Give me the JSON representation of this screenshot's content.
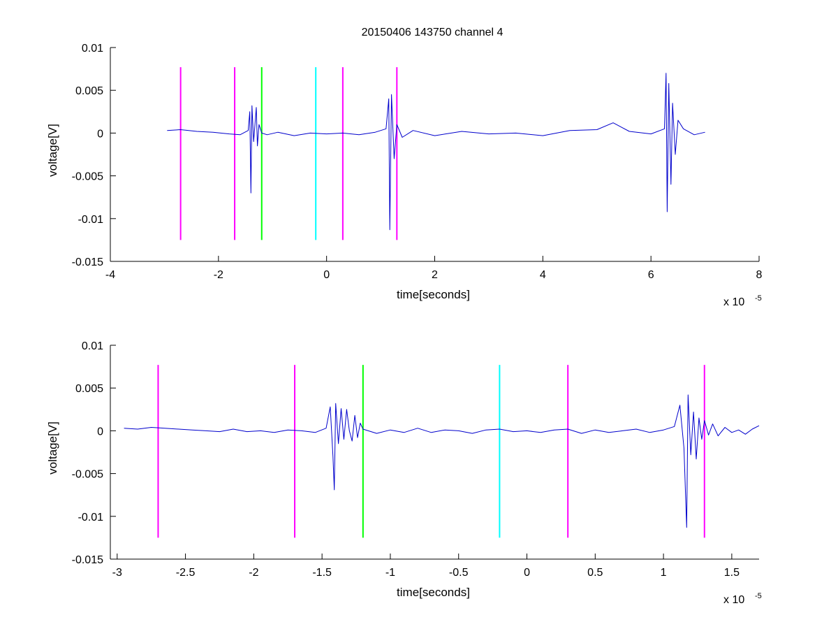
{
  "figure": {
    "title": "20150406 143750 channel 4"
  },
  "chart_data": [
    {
      "type": "line",
      "xlabel": "time[seconds]",
      "ylabel": "voltage[V]",
      "x_multiplier": "x 10",
      "x_exponent": "-5",
      "xlim": [
        -4,
        8
      ],
      "ylim": [
        -0.015,
        0.01
      ],
      "xticks": [
        -4,
        -2,
        0,
        2,
        4,
        6,
        8
      ],
      "xtick_labels": [
        "-4",
        "-2",
        "0",
        "2",
        "4",
        "6",
        "8"
      ],
      "yticks": [
        -0.015,
        -0.01,
        -0.005,
        0,
        0.005,
        0.01
      ],
      "ytick_labels": [
        "-0.015",
        "-0.01",
        "-0.005",
        "0",
        "0.005",
        "0.01"
      ],
      "grid": false,
      "series": [
        {
          "color": "#0000cc",
          "x": [
            -2.95,
            -2.7,
            -2.4,
            -2.1,
            -1.8,
            -1.6,
            -1.45,
            -1.42,
            -1.4,
            -1.38,
            -1.35,
            -1.3,
            -1.28,
            -1.25,
            -1.2,
            -1.1,
            -0.9,
            -0.6,
            -0.3,
            0.0,
            0.3,
            0.6,
            0.9,
            1.1,
            1.15,
            1.17,
            1.2,
            1.25,
            1.3,
            1.4,
            1.6,
            2.0,
            2.5,
            3.0,
            3.5,
            4.0,
            4.5,
            5.0,
            5.3,
            5.6,
            6.0,
            6.25,
            6.28,
            6.3,
            6.33,
            6.37,
            6.4,
            6.45,
            6.5,
            6.6,
            6.8,
            7.0
          ],
          "y": [
            0.0003,
            0.0004,
            0.0002,
            0.0001,
            -0.0001,
            -0.0002,
            0.0003,
            0.0025,
            -0.007,
            0.0032,
            -0.001,
            0.003,
            -0.0015,
            0.001,
            0.0,
            -0.0002,
            0.0001,
            -0.0003,
            0.0,
            -0.0001,
            0.0,
            -0.0002,
            0.0001,
            0.0005,
            0.004,
            -0.0113,
            0.0045,
            -0.003,
            0.001,
            -0.0005,
            0.0003,
            -0.0003,
            0.0002,
            -0.0001,
            0.0,
            -0.0003,
            0.0003,
            0.0004,
            0.0012,
            0.0002,
            -0.0001,
            0.0005,
            0.007,
            -0.0092,
            0.0058,
            -0.006,
            0.0035,
            -0.0025,
            0.0015,
            0.0005,
            -0.0002,
            0.0001
          ]
        }
      ],
      "markers": [
        {
          "x": -2.7,
          "color": "#ff00ff"
        },
        {
          "x": -1.7,
          "color": "#ff00ff"
        },
        {
          "x": -1.2,
          "color": "#00ff00"
        },
        {
          "x": -0.2,
          "color": "#00ffff"
        },
        {
          "x": 0.3,
          "color": "#ff00ff"
        },
        {
          "x": 1.3,
          "color": "#ff00ff"
        }
      ],
      "marker_range": [
        -0.0125,
        0.0077
      ]
    },
    {
      "type": "line",
      "xlabel": "time[seconds]",
      "ylabel": "voltage[V]",
      "x_multiplier": "x 10",
      "x_exponent": "-5",
      "xlim": [
        -3.05,
        1.7
      ],
      "ylim": [
        -0.015,
        0.01
      ],
      "xticks": [
        -3,
        -2.5,
        -2,
        -1.5,
        -1,
        -0.5,
        0,
        0.5,
        1,
        1.5
      ],
      "xtick_labels": [
        "-3",
        "-2.5",
        "-2",
        "-1.5",
        "-1",
        "-0.5",
        "0",
        "0.5",
        "1",
        "1.5"
      ],
      "yticks": [
        -0.015,
        -0.01,
        -0.005,
        0,
        0.005,
        0.01
      ],
      "ytick_labels": [
        "-0.015",
        "-0.01",
        "-0.005",
        "0",
        "0.005",
        "0.01"
      ],
      "grid": false,
      "series": [
        {
          "color": "#0000cc",
          "x": [
            -2.95,
            -2.85,
            -2.75,
            -2.65,
            -2.55,
            -2.45,
            -2.35,
            -2.25,
            -2.15,
            -2.05,
            -1.95,
            -1.85,
            -1.75,
            -1.65,
            -1.55,
            -1.47,
            -1.44,
            -1.42,
            -1.41,
            -1.4,
            -1.38,
            -1.36,
            -1.34,
            -1.32,
            -1.3,
            -1.28,
            -1.26,
            -1.24,
            -1.22,
            -1.2,
            -1.1,
            -1.0,
            -0.9,
            -0.8,
            -0.7,
            -0.6,
            -0.5,
            -0.4,
            -0.3,
            -0.2,
            -0.1,
            0.0,
            0.1,
            0.2,
            0.3,
            0.4,
            0.5,
            0.6,
            0.7,
            0.8,
            0.9,
            1.0,
            1.08,
            1.12,
            1.15,
            1.17,
            1.18,
            1.2,
            1.22,
            1.24,
            1.26,
            1.28,
            1.3,
            1.33,
            1.36,
            1.4,
            1.45,
            1.5,
            1.55,
            1.6,
            1.65,
            1.7
          ],
          "y": [
            0.0003,
            0.0002,
            0.0004,
            0.0003,
            0.0002,
            0.0001,
            0.0,
            -0.0001,
            0.0002,
            -0.0001,
            0.0,
            -0.0002,
            0.0001,
            0.0,
            -0.0002,
            0.0003,
            0.0028,
            -0.003,
            -0.0069,
            0.0032,
            -0.0015,
            0.0026,
            -0.001,
            0.0025,
            0.0,
            -0.0012,
            0.0018,
            -0.0008,
            0.0009,
            0.0002,
            -0.0003,
            0.0001,
            -0.0002,
            0.0003,
            -0.0002,
            0.0001,
            0.0,
            -0.0003,
            0.0001,
            0.0002,
            -0.0001,
            0.0,
            -0.0002,
            0.0001,
            0.0002,
            -0.0003,
            0.0001,
            -0.0002,
            0.0,
            0.0002,
            -0.0002,
            0.0001,
            0.0005,
            0.003,
            -0.002,
            -0.0113,
            0.0042,
            -0.0028,
            0.0022,
            -0.0033,
            0.0015,
            -0.001,
            0.0012,
            -0.0005,
            0.0008,
            -0.0006,
            0.0004,
            -0.0002,
            0.0001,
            -0.0004,
            0.0002,
            0.0006
          ]
        }
      ],
      "markers": [
        {
          "x": -2.7,
          "color": "#ff00ff"
        },
        {
          "x": -1.7,
          "color": "#ff00ff"
        },
        {
          "x": -1.2,
          "color": "#00ff00"
        },
        {
          "x": -0.2,
          "color": "#00ffff"
        },
        {
          "x": 0.3,
          "color": "#ff00ff"
        },
        {
          "x": 1.3,
          "color": "#ff00ff"
        }
      ],
      "marker_range": [
        -0.0125,
        0.0077
      ]
    }
  ]
}
